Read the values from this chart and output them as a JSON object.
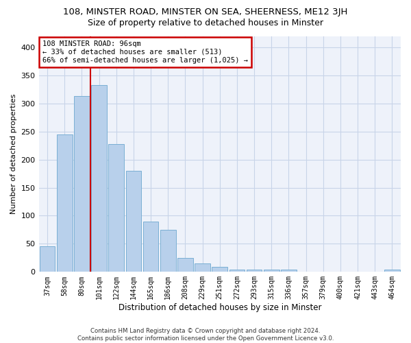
{
  "title1": "108, MINSTER ROAD, MINSTER ON SEA, SHEERNESS, ME12 3JH",
  "title2": "Size of property relative to detached houses in Minster",
  "xlabel": "Distribution of detached houses by size in Minster",
  "ylabel": "Number of detached properties",
  "bar_labels": [
    "37sqm",
    "58sqm",
    "80sqm",
    "101sqm",
    "122sqm",
    "144sqm",
    "165sqm",
    "186sqm",
    "208sqm",
    "229sqm",
    "251sqm",
    "272sqm",
    "293sqm",
    "315sqm",
    "336sqm",
    "357sqm",
    "379sqm",
    "400sqm",
    "421sqm",
    "443sqm",
    "464sqm"
  ],
  "bar_heights": [
    45,
    245,
    313,
    333,
    228,
    180,
    90,
    75,
    25,
    15,
    9,
    4,
    4,
    4,
    4,
    0,
    0,
    0,
    0,
    0,
    4
  ],
  "bar_color": "#b8d0eb",
  "bar_edge_color": "#7aafd4",
  "grid_color": "#c8d4e8",
  "vline_color": "#cc0000",
  "annotation_text": "108 MINSTER ROAD: 96sqm\n← 33% of detached houses are smaller (513)\n66% of semi-detached houses are larger (1,025) →",
  "annotation_box_color": "#cc0000",
  "footnote": "Contains HM Land Registry data © Crown copyright and database right 2024.\nContains public sector information licensed under the Open Government Licence v3.0.",
  "ylim": [
    0,
    420
  ],
  "yticks": [
    0,
    50,
    100,
    150,
    200,
    250,
    300,
    350,
    400
  ],
  "bg_color": "#eef2fa",
  "title1_fontsize": 9.5,
  "title2_fontsize": 9
}
